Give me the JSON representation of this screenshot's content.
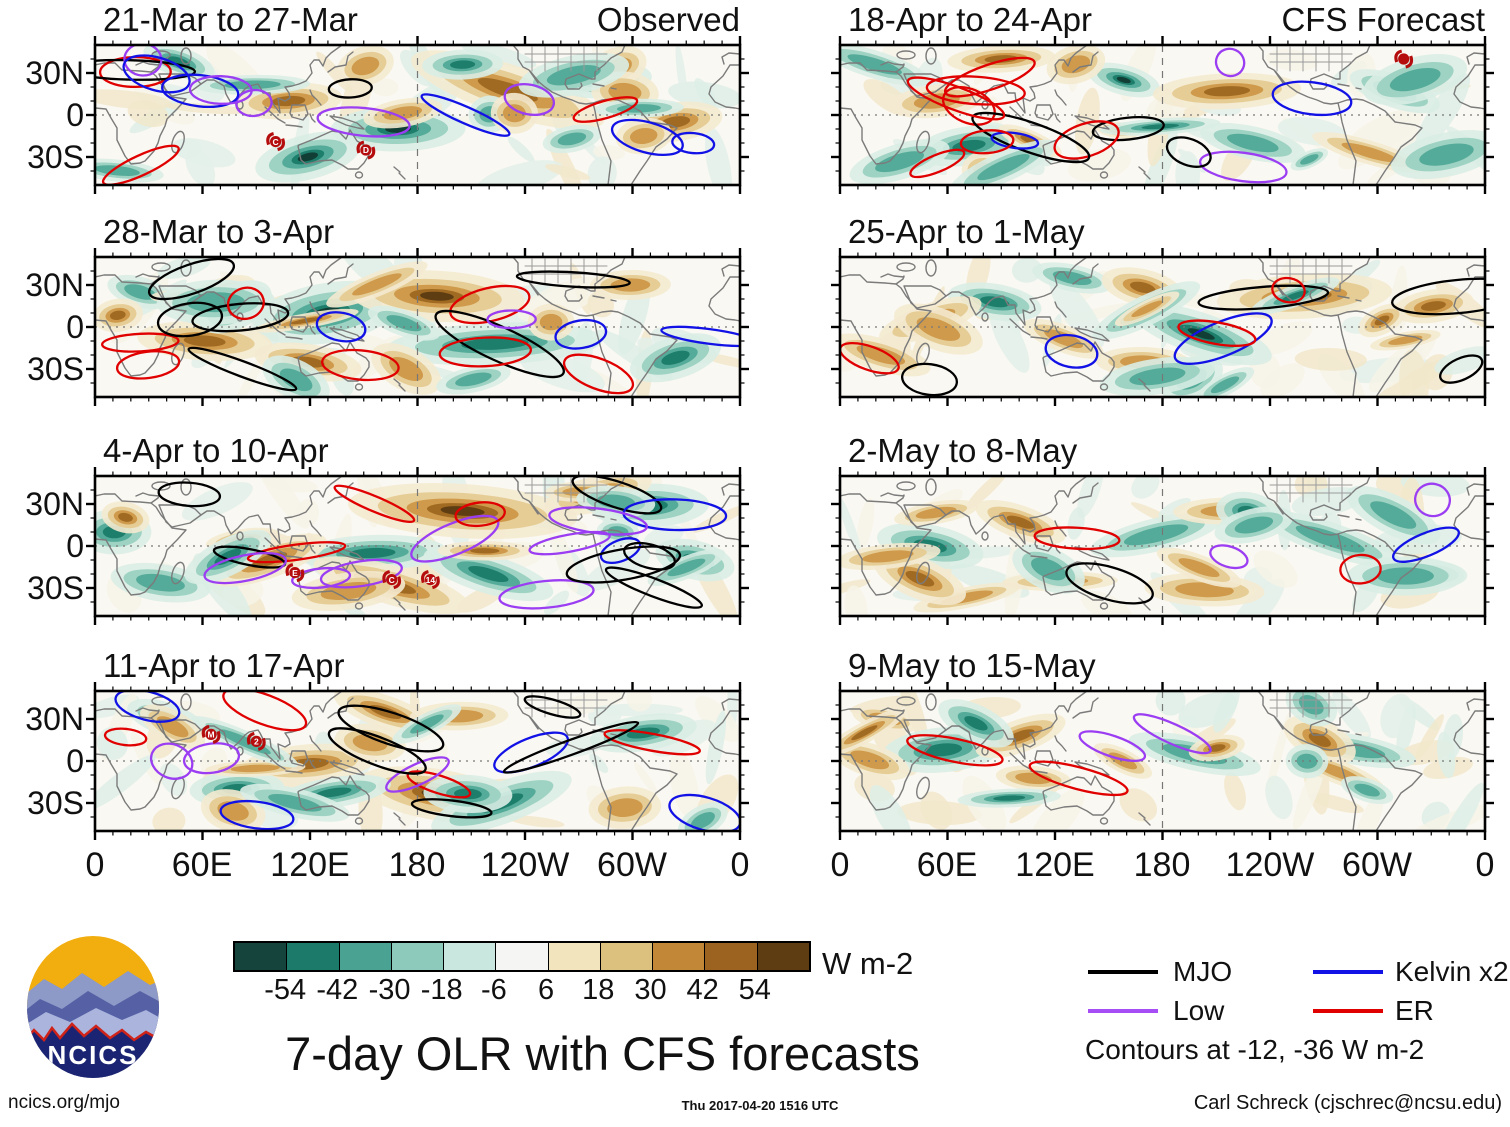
{
  "chart_data": {
    "type": "heatmap",
    "title": "7-day OLR with CFS forecasts",
    "column_labels": {
      "left": "Observed",
      "right": "CFS Forecast"
    },
    "x_axis": [
      "0",
      "60E",
      "120E",
      "180",
      "120W",
      "60W",
      "0"
    ],
    "y_axis": [
      "30N",
      "0",
      "30S"
    ],
    "colorbar": {
      "units": "W m-2",
      "tick_labels": [
        "-54",
        "-42",
        "-30",
        "-18",
        "-6",
        "6",
        "18",
        "30",
        "42",
        "54"
      ],
      "colors": [
        "#14443b",
        "#1b7a69",
        "#4aa392",
        "#8ecabb",
        "#c9e7df",
        "#f5f6f3",
        "#f2e4bd",
        "#dcc07e",
        "#c28737",
        "#9c6220",
        "#5f3d12"
      ]
    },
    "legend": {
      "entries": [
        {
          "label": "MJO",
          "color": "#000000"
        },
        {
          "label": "Low",
          "color": "#a64df5"
        },
        {
          "label": "Kelvin x2",
          "color": "#1212e6"
        },
        {
          "label": "ER",
          "color": "#e00000"
        }
      ],
      "note": "Contours at -12, -36 W m-2"
    },
    "panels": [
      {
        "id": "obs-1",
        "title": "21-Mar to 27-Mar",
        "corner_label": "Observed",
        "seed": 11,
        "contours": 15,
        "features": [
          [
            0.33,
            0.8,
            80,
            30,
            "neg",
            3
          ],
          [
            0.47,
            0.6,
            100,
            30,
            "neg",
            3
          ],
          [
            0.64,
            0.32,
            150,
            34,
            "pos",
            2
          ],
          [
            0.79,
            0.25,
            70,
            24,
            "neg",
            2
          ],
          [
            0.3,
            0.4,
            80,
            24,
            "pos",
            2
          ],
          [
            0.13,
            0.12,
            55,
            20,
            "neg",
            2
          ],
          [
            0.9,
            0.55,
            70,
            26,
            "pos",
            2
          ],
          [
            0.57,
            0.14,
            60,
            20,
            "neg",
            2
          ]
        ],
        "storms": [
          {
            "label": "C",
            "x": 0.28,
            "y": 0.69
          },
          {
            "label": "D",
            "x": 0.42,
            "y": 0.75
          }
        ]
      },
      {
        "id": "obs-2",
        "title": "28-Mar to 3-Apr",
        "corner_label": "",
        "seed": 22,
        "contours": 17,
        "features": [
          [
            0.36,
            0.4,
            110,
            40,
            "neg",
            3
          ],
          [
            0.53,
            0.28,
            130,
            34,
            "pos",
            3
          ],
          [
            0.62,
            0.62,
            160,
            28,
            "neg",
            2
          ],
          [
            0.17,
            0.6,
            100,
            26,
            "pos",
            2
          ],
          [
            0.9,
            0.72,
            70,
            28,
            "neg",
            2
          ],
          [
            0.83,
            0.2,
            60,
            20,
            "pos",
            1
          ],
          [
            0.07,
            0.25,
            50,
            20,
            "neg",
            1
          ],
          [
            0.33,
            0.75,
            80,
            24,
            "pos",
            2
          ]
        ],
        "storms": []
      },
      {
        "id": "obs-3",
        "title": "4-Apr to 10-Apr",
        "corner_label": "",
        "seed": 33,
        "contours": 18,
        "features": [
          [
            0.57,
            0.25,
            170,
            36,
            "pos",
            3
          ],
          [
            0.43,
            0.55,
            110,
            24,
            "neg",
            2
          ],
          [
            0.46,
            0.78,
            120,
            26,
            "pos",
            2
          ],
          [
            0.61,
            0.7,
            100,
            26,
            "neg",
            2
          ],
          [
            0.03,
            0.4,
            55,
            30,
            "neg",
            2
          ],
          [
            0.27,
            0.6,
            90,
            24,
            "pos",
            2
          ],
          [
            0.93,
            0.6,
            60,
            26,
            "neg",
            2
          ],
          [
            0.8,
            0.15,
            60,
            18,
            "pos",
            1
          ]
        ],
        "storms": [
          {
            "label": "E",
            "x": 0.31,
            "y": 0.69
          },
          {
            "label": "C",
            "x": 0.46,
            "y": 0.74
          },
          {
            "label": "14",
            "x": 0.52,
            "y": 0.74
          }
        ]
      },
      {
        "id": "obs-4",
        "title": "11-Apr to 17-Apr",
        "corner_label": "",
        "seed": 44,
        "contours": 16,
        "features": [
          [
            0.53,
            0.74,
            120,
            34,
            "pos",
            3
          ],
          [
            0.63,
            0.8,
            110,
            28,
            "neg",
            2
          ],
          [
            0.33,
            0.52,
            100,
            26,
            "pos",
            2
          ],
          [
            0.11,
            0.2,
            60,
            22,
            "neg",
            2
          ],
          [
            0.85,
            0.3,
            80,
            24,
            "neg",
            2
          ],
          [
            0.45,
            0.15,
            80,
            22,
            "pos",
            2
          ],
          [
            0.22,
            0.7,
            70,
            24,
            "neg",
            2
          ]
        ],
        "storms": [
          {
            "label": "M",
            "x": 0.18,
            "y": 0.31
          },
          {
            "label": "2",
            "x": 0.25,
            "y": 0.36
          }
        ]
      },
      {
        "id": "fcst-1",
        "title": "18-Apr to 24-Apr",
        "corner_label": "CFS Forecast",
        "seed": 55,
        "contours": 14,
        "features": [
          [
            0.44,
            0.25,
            55,
            20,
            "neg",
            3
          ],
          [
            0.25,
            0.1,
            80,
            18,
            "pos",
            2
          ],
          [
            0.2,
            0.72,
            80,
            26,
            "neg",
            2
          ],
          [
            0.6,
            0.33,
            110,
            24,
            "pos",
            2
          ],
          [
            0.86,
            0.33,
            70,
            22,
            "neg",
            2
          ],
          [
            0.15,
            0.4,
            70,
            22,
            "pos",
            1
          ],
          [
            0.64,
            0.7,
            80,
            22,
            "neg",
            1
          ]
        ],
        "storms": [
          {
            "label": "",
            "x": 0.874,
            "y": 0.1
          }
        ]
      },
      {
        "id": "fcst-2",
        "title": "25-Apr to 1-May",
        "corner_label": "",
        "seed": 66,
        "contours": 9,
        "features": [
          [
            0.72,
            0.28,
            130,
            30,
            "pos",
            2
          ],
          [
            0.56,
            0.55,
            110,
            28,
            "neg",
            3
          ],
          [
            0.24,
            0.32,
            70,
            24,
            "neg",
            2
          ],
          [
            0.14,
            0.45,
            80,
            22,
            "pos",
            1
          ],
          [
            0.92,
            0.35,
            60,
            22,
            "pos",
            2
          ],
          [
            0.36,
            0.15,
            60,
            18,
            "neg",
            1
          ],
          [
            0.47,
            0.75,
            70,
            20,
            "pos",
            1
          ]
        ],
        "storms": []
      },
      {
        "id": "fcst-3",
        "title": "2-May to 8-May",
        "corner_label": "",
        "seed": 77,
        "contours": 6,
        "features": [
          [
            0.14,
            0.5,
            80,
            28,
            "neg",
            2
          ],
          [
            0.28,
            0.33,
            70,
            22,
            "pos",
            2
          ],
          [
            0.49,
            0.42,
            100,
            22,
            "neg",
            1
          ],
          [
            0.76,
            0.45,
            110,
            22,
            "neg",
            1
          ],
          [
            0.6,
            0.25,
            80,
            18,
            "pos",
            1
          ],
          [
            0.92,
            0.7,
            50,
            18,
            "neg",
            1
          ]
        ],
        "storms": []
      },
      {
        "id": "fcst-4",
        "title": "9-May to 15-May",
        "corner_label": "",
        "seed": 88,
        "contours": 4,
        "features": [
          [
            0.16,
            0.42,
            90,
            30,
            "neg",
            2
          ],
          [
            0.28,
            0.32,
            70,
            22,
            "pos",
            2
          ],
          [
            0.55,
            0.45,
            100,
            22,
            "neg",
            1
          ],
          [
            0.8,
            0.42,
            90,
            20,
            "neg",
            1
          ],
          [
            0.07,
            0.2,
            50,
            16,
            "pos",
            1
          ]
        ],
        "storms": []
      }
    ]
  },
  "branding": {
    "logo_text": "NCICS",
    "footer_left": "ncics.org/mjo",
    "footer_center": "Thu 2017-04-20 1516 UTC",
    "footer_right": "Carl Schreck (cjschrec@ncsu.edu)"
  }
}
